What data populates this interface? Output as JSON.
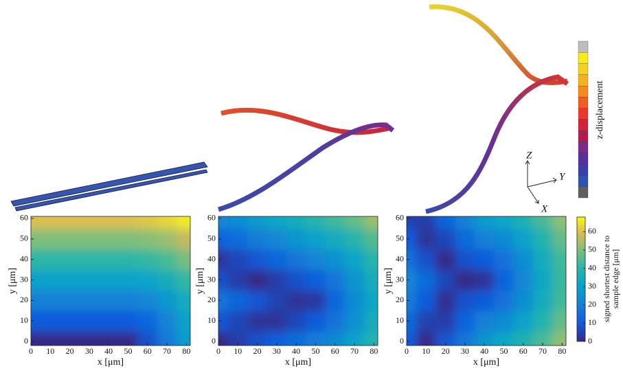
{
  "figure": {
    "displacement_colorbar": {
      "label": "z-displacement",
      "colors": [
        "#bdbdbd",
        "#f7ec1a",
        "#f5d31c",
        "#f4b11c",
        "#f28a1e",
        "#ee5e24",
        "#e8392a",
        "#d42338",
        "#b01e4e",
        "#7e2a8a",
        "#5a2f9c",
        "#3b3fa8",
        "#2c55b0",
        "#5f5f5f"
      ]
    },
    "triad": {
      "z": "Z",
      "y": "Y",
      "x": "X"
    }
  },
  "colorbar": {
    "label_lines": [
      "signed shortest distance to",
      "sample edge [μm]"
    ],
    "clim": [
      0,
      68
    ],
    "ticks": [
      0,
      10,
      20,
      30,
      40,
      50,
      60
    ]
  },
  "chart_data": [
    {
      "type": "heatmap",
      "xlabel": "x [μm]",
      "ylabel": "y [μm]",
      "x": [
        0,
        10,
        20,
        30,
        40,
        50,
        60,
        70,
        80
      ],
      "y": [
        0,
        10,
        20,
        30,
        40,
        50,
        60
      ],
      "z": [
        [
          0,
          0,
          0,
          0,
          0,
          0,
          8,
          18,
          28
        ],
        [
          10,
          10,
          10,
          10,
          10,
          10,
          13,
          21,
          30
        ],
        [
          20,
          20,
          20,
          20,
          20,
          20,
          22,
          27,
          34
        ],
        [
          30,
          30,
          30,
          30,
          30,
          30,
          31,
          35,
          41
        ],
        [
          40,
          40,
          40,
          40,
          40,
          40,
          41,
          44,
          49
        ],
        [
          50,
          50,
          50,
          50,
          50,
          50,
          51,
          53,
          57
        ],
        [
          60,
          60,
          60,
          60,
          60,
          60,
          61,
          63,
          66
        ]
      ],
      "xlim": [
        0,
        82
      ],
      "ylim": [
        -2,
        61
      ],
      "xticks": [
        0,
        10,
        20,
        30,
        40,
        50,
        60,
        70,
        80
      ],
      "yticks": [
        0,
        10,
        20,
        30,
        40,
        50,
        60
      ]
    },
    {
      "type": "heatmap",
      "xlabel": "x [μm]",
      "ylabel": "y [μm]",
      "x": [
        0,
        10,
        20,
        30,
        40,
        50,
        60,
        70,
        80
      ],
      "y": [
        0,
        10,
        20,
        30,
        40,
        50,
        60
      ],
      "z": [
        [
          0,
          4,
          8,
          11,
          15,
          19,
          23,
          30,
          38
        ],
        [
          9,
          6,
          2,
          2,
          6,
          10,
          16,
          25,
          34
        ],
        [
          17,
          13,
          9,
          5,
          2,
          3,
          13,
          23,
          33
        ],
        [
          8,
          4,
          0,
          4,
          8,
          11,
          17,
          26,
          35
        ],
        [
          2,
          6,
          9,
          13,
          17,
          21,
          25,
          31,
          39
        ],
        [
          12,
          15,
          19,
          22,
          26,
          30,
          34,
          39,
          45
        ],
        [
          22,
          24,
          28,
          32,
          35,
          39,
          43,
          47,
          53
        ]
      ],
      "xlim": [
        0,
        82
      ],
      "ylim": [
        -2,
        61
      ],
      "xticks": [
        0,
        10,
        20,
        30,
        40,
        50,
        60,
        70,
        80
      ],
      "yticks": [
        0,
        10,
        20,
        30,
        40,
        50,
        60
      ]
    },
    {
      "type": "heatmap",
      "xlabel": "x [μm]",
      "ylabel": "y [μm]",
      "x": [
        0,
        10,
        20,
        30,
        40,
        50,
        60,
        70,
        80
      ],
      "y": [
        0,
        10,
        20,
        30,
        40,
        50,
        60
      ],
      "z": [
        [
          10,
          0,
          9,
          17,
          26,
          32,
          37,
          44,
          52
        ],
        [
          14,
          5,
          4,
          12,
          20,
          23,
          30,
          38,
          47
        ],
        [
          19,
          10,
          1,
          8,
          10,
          16,
          24,
          34,
          43
        ],
        [
          22,
          14,
          6,
          0,
          2,
          12,
          22,
          32,
          42
        ],
        [
          16,
          8,
          0,
          8,
          10,
          16,
          24,
          34,
          43
        ],
        [
          10,
          2,
          6,
          14,
          20,
          23,
          30,
          38,
          47
        ],
        [
          5,
          4,
          12,
          20,
          28,
          32,
          37,
          44,
          52
        ]
      ],
      "xlim": [
        0,
        82
      ],
      "ylim": [
        -2,
        61
      ],
      "xticks": [
        0,
        10,
        20,
        30,
        40,
        50,
        60,
        70,
        80
      ],
      "yticks": [
        0,
        10,
        20,
        30,
        40,
        50,
        60
      ]
    }
  ]
}
